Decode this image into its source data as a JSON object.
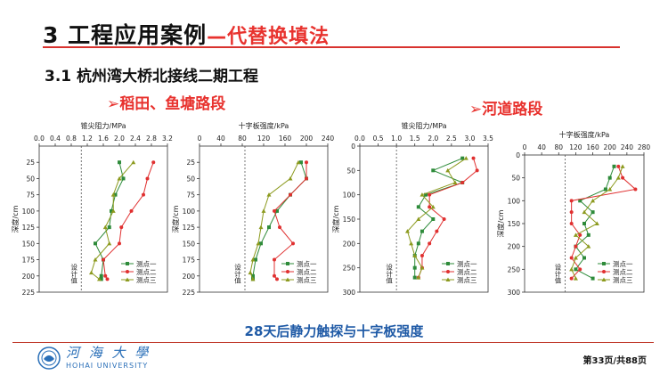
{
  "slide": {
    "title": "3 工程应用案例",
    "title_sub": "—代替换填法",
    "section": "3.1  杭州湾大桥北接线二期工程",
    "label_left": "➢稻田、鱼塘路段",
    "label_right": "➢河道路段",
    "caption": "28天后静力触探与十字板强度",
    "page_indicator": "第33页/共88页",
    "logo_cn": "河 海 大 學",
    "logo_en": "HOHAI UNIVERSITY",
    "accent_color": "#e8322e",
    "caption_color": "#1f5aa6"
  },
  "chart_data": [
    {
      "type": "line",
      "title": "锥尖阻力/MPa",
      "xlabel": "锥尖阻力/MPa",
      "ylabel": "深度/cm",
      "xlim": [
        0,
        3.2
      ],
      "ylim": [
        0,
        225
      ],
      "xticks": [
        "0.0",
        "0.4",
        "0.8",
        "1.2",
        "1.6",
        "2.0",
        "2.4",
        "2.8",
        "3.2"
      ],
      "yticks": [
        "25",
        "50",
        "75",
        "100",
        "125",
        "150",
        "175",
        "200",
        "225"
      ],
      "design_line": {
        "x": 1.05,
        "label": "设计值"
      },
      "series": [
        {
          "name": "测点一",
          "color": "#2e8b3a",
          "marker": "square",
          "x": [
            2.0,
            2.1,
            1.9,
            1.8,
            1.75,
            1.4,
            1.6,
            1.55,
            1.55
          ],
          "y": [
            25,
            50,
            75,
            100,
            125,
            150,
            175,
            200,
            205
          ]
        },
        {
          "name": "测点二",
          "color": "#e03030",
          "marker": "circle",
          "x": [
            2.85,
            2.7,
            2.6,
            2.3,
            2.05,
            2.0,
            1.6,
            1.65,
            1.7
          ],
          "y": [
            25,
            50,
            75,
            100,
            125,
            150,
            175,
            200,
            205
          ]
        },
        {
          "name": "测点三",
          "color": "#8c9a1e",
          "marker": "triangle",
          "x": [
            2.35,
            2.0,
            1.85,
            1.85,
            1.65,
            1.75,
            1.4,
            1.3,
            1.5
          ],
          "y": [
            25,
            50,
            75,
            100,
            125,
            150,
            175,
            195,
            205
          ]
        }
      ]
    },
    {
      "type": "line",
      "title": "十字板强度/kPa",
      "xlabel": "十字板强度/kPa",
      "ylabel": "深度/cm",
      "xlim": [
        0,
        240
      ],
      "ylim": [
        0,
        225
      ],
      "xticks": [
        "0",
        "40",
        "80",
        "120",
        "160",
        "200",
        "240"
      ],
      "yticks": [
        "25",
        "50",
        "75",
        "100",
        "125",
        "150",
        "175",
        "200",
        "225"
      ],
      "design_line": {
        "x": 85,
        "label": "设计值"
      },
      "series": [
        {
          "name": "测点一",
          "color": "#2e8b3a",
          "marker": "square",
          "x": [
            190,
            200,
            170,
            145,
            130,
            115,
            105,
            100,
            100
          ],
          "y": [
            25,
            50,
            75,
            100,
            125,
            150,
            175,
            200,
            205
          ]
        },
        {
          "name": "测点二",
          "color": "#e03030",
          "marker": "circle",
          "x": [
            200,
            200,
            170,
            140,
            150,
            175,
            140,
            140,
            145
          ],
          "y": [
            25,
            50,
            75,
            100,
            125,
            150,
            175,
            200,
            205
          ]
        },
        {
          "name": "测点三",
          "color": "#8c9a1e",
          "marker": "triangle",
          "x": [
            185,
            170,
            130,
            120,
            115,
            110,
            100,
            95,
            100
          ],
          "y": [
            25,
            50,
            75,
            100,
            125,
            150,
            175,
            195,
            205
          ]
        }
      ]
    },
    {
      "type": "line",
      "title": "锥尖阻力/MPa",
      "xlabel": "锥尖阻力/MPa",
      "ylabel": "深度/cm",
      "xlim": [
        0,
        3.5
      ],
      "ylim": [
        0,
        300
      ],
      "xticks": [
        "0.0",
        "0.5",
        "1.0",
        "1.5",
        "2.0",
        "2.5",
        "3.0",
        "3.5"
      ],
      "yticks": [
        "0",
        "50",
        "100",
        "150",
        "200",
        "250",
        "300"
      ],
      "design_line": {
        "x": 1.0,
        "label": "设计值"
      },
      "series": [
        {
          "name": "测点一",
          "color": "#2e8b3a",
          "marker": "square",
          "x": [
            2.8,
            2.0,
            2.8,
            1.8,
            1.6,
            2.0,
            1.7,
            1.6,
            1.5,
            1.5,
            1.5
          ],
          "y": [
            25,
            50,
            75,
            100,
            125,
            150,
            175,
            200,
            225,
            250,
            270
          ]
        },
        {
          "name": "测点二",
          "color": "#e03030",
          "marker": "circle",
          "x": [
            3.1,
            3.2,
            2.8,
            1.9,
            1.9,
            2.3,
            2.1,
            1.9,
            1.7,
            1.7,
            1.6
          ],
          "y": [
            25,
            50,
            75,
            100,
            125,
            150,
            175,
            200,
            225,
            250,
            270
          ]
        },
        {
          "name": "测点三",
          "color": "#8c9a1e",
          "marker": "triangle",
          "x": [
            2.9,
            2.4,
            2.6,
            1.7,
            2.0,
            1.6,
            1.3,
            1.4,
            1.5,
            1.7,
            1.6
          ],
          "y": [
            25,
            50,
            75,
            100,
            125,
            150,
            175,
            200,
            225,
            250,
            270
          ]
        }
      ]
    },
    {
      "type": "line",
      "title": "十字板强度/kPa",
      "xlabel": "十字板强度/kPa",
      "ylabel": "深度/cm",
      "xlim": [
        0,
        280
      ],
      "ylim": [
        0,
        300
      ],
      "xticks": [
        "0",
        "40",
        "80",
        "120",
        "160",
        "200",
        "240",
        "280"
      ],
      "yticks": [
        "0",
        "50",
        "100",
        "150",
        "200",
        "250",
        "300"
      ],
      "design_line": {
        "x": 95,
        "label": "设计值"
      },
      "series": [
        {
          "name": "测点一",
          "color": "#2e8b3a",
          "marker": "square",
          "x": [
            210,
            200,
            190,
            130,
            160,
            140,
            150,
            120,
            140,
            120,
            160
          ],
          "y": [
            25,
            50,
            75,
            100,
            125,
            150,
            175,
            200,
            225,
            250,
            270
          ]
        },
        {
          "name": "测点二",
          "color": "#e03030",
          "marker": "circle",
          "x": [
            220,
            230,
            260,
            110,
            110,
            110,
            130,
            120,
            110,
            130,
            110
          ],
          "y": [
            25,
            50,
            75,
            100,
            125,
            150,
            175,
            200,
            225,
            250,
            270
          ]
        },
        {
          "name": "测点三",
          "color": "#8c9a1e",
          "marker": "triangle",
          "x": [
            230,
            220,
            200,
            160,
            140,
            170,
            120,
            150,
            120,
            110,
            120
          ],
          "y": [
            25,
            50,
            75,
            100,
            125,
            150,
            175,
            200,
            225,
            250,
            270
          ]
        }
      ]
    }
  ]
}
